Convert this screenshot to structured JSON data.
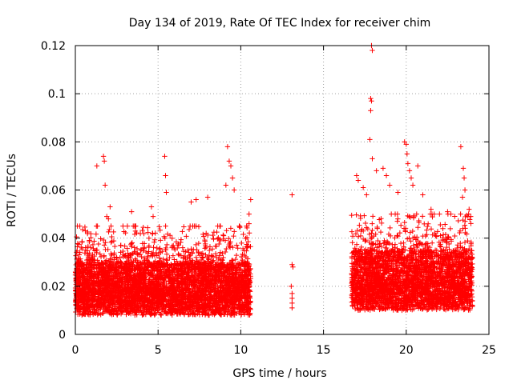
{
  "chart_data": {
    "type": "scatter",
    "title": "Day 134 of 2019, Rate Of TEC Index for receiver chim",
    "xlabel": "GPS time / hours",
    "ylabel": "ROTI / TECUs",
    "xlim": [
      0,
      25
    ],
    "ylim": [
      0,
      0.12
    ],
    "xticks": [
      0,
      5,
      10,
      15,
      20,
      25
    ],
    "xtick_labels": [
      "0",
      "5",
      "10",
      "15",
      "20",
      "25"
    ],
    "yticks": [
      0,
      0.02,
      0.04,
      0.06,
      0.08,
      0.1,
      0.12
    ],
    "ytick_labels": [
      "0",
      "0.02",
      "0.04",
      "0.06",
      "0.08",
      "0.1",
      "0.12"
    ],
    "grid": true,
    "marker": "+",
    "color": "#ff0000",
    "series": [
      {
        "name": "ROTI",
        "segments": [
          {
            "x_range": [
              0.0,
              10.6
            ],
            "y_core": [
              0.008,
              0.03
            ],
            "y_max": 0.045
          },
          {
            "x_range": [
              16.7,
              24.0
            ],
            "y_core": [
              0.01,
              0.035
            ],
            "y_max": 0.05
          }
        ],
        "points": [
          [
            1.3,
            0.07
          ],
          [
            1.7,
            0.074
          ],
          [
            1.75,
            0.072
          ],
          [
            1.8,
            0.062
          ],
          [
            1.9,
            0.049
          ],
          [
            2.0,
            0.048
          ],
          [
            2.1,
            0.053
          ],
          [
            3.4,
            0.051
          ],
          [
            4.6,
            0.053
          ],
          [
            4.7,
            0.049
          ],
          [
            5.4,
            0.074
          ],
          [
            5.45,
            0.066
          ],
          [
            5.5,
            0.059
          ],
          [
            7.0,
            0.055
          ],
          [
            7.3,
            0.056
          ],
          [
            8.0,
            0.057
          ],
          [
            9.1,
            0.062
          ],
          [
            9.2,
            0.078
          ],
          [
            9.3,
            0.072
          ],
          [
            9.4,
            0.07
          ],
          [
            9.5,
            0.065
          ],
          [
            9.6,
            0.06
          ],
          [
            10.6,
            0.056
          ],
          [
            10.5,
            0.05
          ],
          [
            10.5,
            0.046
          ],
          [
            10.4,
            0.036
          ],
          [
            13.1,
            0.058
          ],
          [
            13.1,
            0.029
          ],
          [
            13.15,
            0.028
          ],
          [
            13.05,
            0.02
          ],
          [
            13.1,
            0.017
          ],
          [
            13.1,
            0.015
          ],
          [
            13.1,
            0.013
          ],
          [
            13.1,
            0.011
          ],
          [
            17.0,
            0.066
          ],
          [
            17.1,
            0.064
          ],
          [
            17.4,
            0.061
          ],
          [
            17.6,
            0.058
          ],
          [
            17.9,
            0.12
          ],
          [
            17.95,
            0.118
          ],
          [
            17.85,
            0.098
          ],
          [
            17.9,
            0.097
          ],
          [
            17.85,
            0.093
          ],
          [
            17.8,
            0.081
          ],
          [
            17.95,
            0.073
          ],
          [
            18.2,
            0.068
          ],
          [
            18.6,
            0.069
          ],
          [
            18.8,
            0.066
          ],
          [
            19.0,
            0.062
          ],
          [
            19.5,
            0.059
          ],
          [
            19.9,
            0.08
          ],
          [
            20.0,
            0.079
          ],
          [
            20.05,
            0.075
          ],
          [
            20.1,
            0.071
          ],
          [
            20.2,
            0.068
          ],
          [
            20.3,
            0.065
          ],
          [
            20.4,
            0.062
          ],
          [
            20.7,
            0.07
          ],
          [
            21.0,
            0.058
          ],
          [
            21.5,
            0.052
          ],
          [
            22.5,
            0.051
          ],
          [
            23.3,
            0.078
          ],
          [
            23.45,
            0.069
          ],
          [
            23.5,
            0.065
          ],
          [
            23.55,
            0.06
          ],
          [
            23.4,
            0.057
          ],
          [
            23.8,
            0.052
          ],
          [
            23.9,
            0.049
          ]
        ]
      }
    ]
  }
}
